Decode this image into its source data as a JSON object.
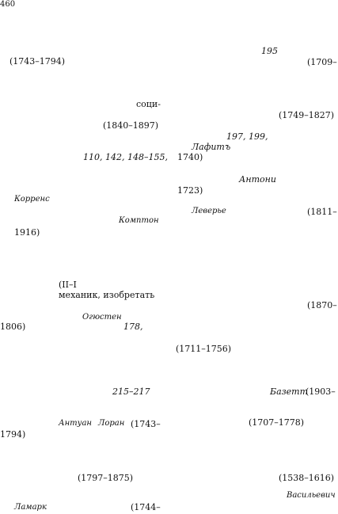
{
  "page": {
    "page_number": "460",
    "fragments": [
      "(1743–1794)",
      "195",
      "(1709–",
      "соци-",
      "(1749–1827)",
      "(1840–1897)",
      "197, 199,",
      "Лафитъ",
      "110, 142, 148–155,",
      "1740)",
      "Антони",
      "1723)",
      "Корренс",
      "Леверье",
      "(1811–",
      "Комптон",
      "1916)",
      "(II–I",
      "механик, изобретать",
      "(1870–",
      "Огюстен",
      "1806)",
      "178,",
      "(1711–1756)",
      "215–217",
      "Базетт",
      "(1903–",
      "Антуан",
      "Лоран",
      "(1743–",
      "(1707–1778)",
      "1794)",
      "(1797–1875)",
      "(1538–1616)",
      "Васильевич",
      "Ламарк",
      "(1744–"
    ]
  }
}
